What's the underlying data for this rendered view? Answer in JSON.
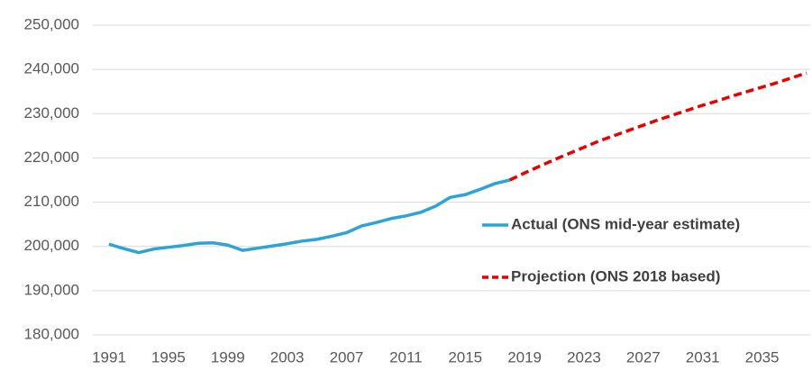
{
  "chart_data": {
    "type": "line",
    "x": [
      1991,
      1992,
      1993,
      1994,
      1995,
      1996,
      1997,
      1998,
      1999,
      2000,
      2001,
      2002,
      2003,
      2004,
      2005,
      2006,
      2007,
      2008,
      2009,
      2010,
      2011,
      2012,
      2013,
      2014,
      2015,
      2016,
      2017,
      2018,
      2019,
      2020,
      2021,
      2022,
      2023,
      2024,
      2025,
      2026,
      2027,
      2028,
      2029,
      2030,
      2031,
      2032,
      2033,
      2034,
      2035,
      2036,
      2037,
      2038
    ],
    "series": [
      {
        "name": "Actual (ONS mid-year estimate)",
        "color": "#2ea3d6",
        "dash": false,
        "values": [
          200500,
          199500,
          198600,
          199400,
          199800,
          200200,
          200700,
          200800,
          200300,
          199100,
          199600,
          200100,
          200600,
          201200,
          201600,
          202300,
          203100,
          204600,
          205400,
          206300,
          206900,
          207700,
          209100,
          211100,
          211700,
          212900,
          214200,
          215000,
          null,
          null,
          null,
          null,
          null,
          null,
          null,
          null,
          null,
          null,
          null,
          null,
          null,
          null,
          null,
          null,
          null,
          null,
          null,
          null
        ]
      },
      {
        "name": "Projection (ONS 2018 based)",
        "color": "#e60000",
        "dash": true,
        "values": [
          null,
          null,
          null,
          null,
          null,
          null,
          null,
          null,
          null,
          null,
          null,
          null,
          null,
          null,
          null,
          null,
          null,
          null,
          null,
          null,
          null,
          null,
          null,
          null,
          null,
          null,
          null,
          215000,
          216600,
          218100,
          219600,
          221000,
          222400,
          223800,
          225000,
          226200,
          227400,
          228600,
          229700,
          230800,
          231900,
          232900,
          234000,
          235000,
          236000,
          237000,
          238100,
          239200
        ]
      }
    ],
    "xlim": [
      1991,
      2038
    ],
    "xticks": [
      1991,
      1995,
      1999,
      2003,
      2007,
      2011,
      2015,
      2019,
      2023,
      2027,
      2031,
      2035
    ],
    "ylim": [
      180000,
      250000
    ],
    "yticks": [
      {
        "value": 180000,
        "label": "180,000"
      },
      {
        "value": 190000,
        "label": "190,000"
      },
      {
        "value": 200000,
        "label": "200,000"
      },
      {
        "value": 210000,
        "label": "210,000"
      },
      {
        "value": 220000,
        "label": "220,000"
      },
      {
        "value": 230000,
        "label": "230,000"
      },
      {
        "value": 240000,
        "label": "240,000"
      },
      {
        "value": 250000,
        "label": "250,000"
      }
    ],
    "grid": true,
    "legend": "right"
  }
}
